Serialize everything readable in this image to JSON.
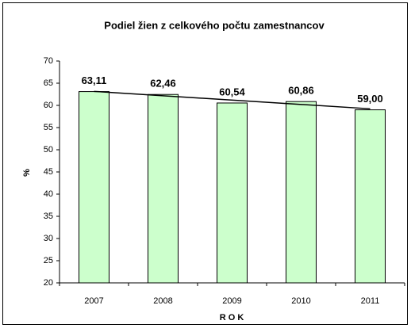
{
  "chart_data": {
    "type": "bar",
    "title": "Podiel žien z celkového počtu zamestnancov",
    "x_label": "R O K",
    "y_label": "%",
    "categories": [
      "2007",
      "2008",
      "2009",
      "2010",
      "2011"
    ],
    "values": [
      63.11,
      62.46,
      60.54,
      60.86,
      59.0
    ],
    "value_labels": [
      "63,11",
      "62,46",
      "60,54",
      "60,86",
      "59,00"
    ],
    "color": "#ccffcc",
    "ylim": [
      20,
      70
    ],
    "yticks": [
      20,
      25,
      30,
      35,
      40,
      45,
      50,
      55,
      60,
      65,
      70
    ],
    "trendline": "linear"
  }
}
